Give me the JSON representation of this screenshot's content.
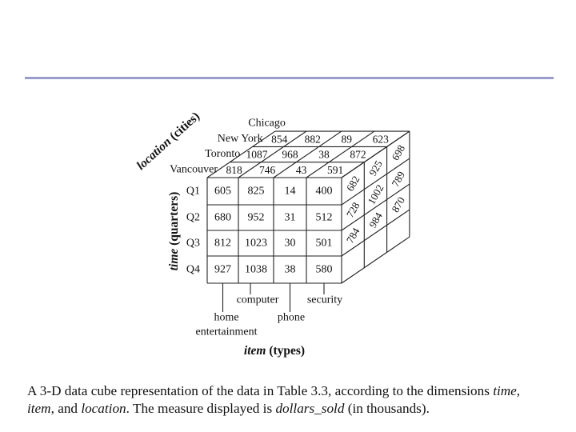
{
  "figure": {
    "location_axis": {
      "name": "location",
      "unit": "(cities)"
    },
    "time_axis": {
      "name": "time",
      "unit": "(quarters)"
    },
    "item_axis": {
      "name": "item",
      "unit": "(types)"
    },
    "locations": [
      "Chicago",
      "New York",
      "Toronto",
      "Vancouver"
    ],
    "quarters": [
      "Q1",
      "Q2",
      "Q3",
      "Q4"
    ],
    "items": [
      "home entertainment",
      "computer",
      "phone",
      "security"
    ],
    "item_label_lines": [
      [
        "home",
        "entertainment"
      ],
      [
        "computer"
      ],
      [
        "phone"
      ],
      [
        "security"
      ]
    ],
    "front_values": [
      [
        "605",
        "825",
        "14",
        "400"
      ],
      [
        "680",
        "952",
        "31",
        "512"
      ],
      [
        "812",
        "1023",
        "30",
        "501"
      ],
      [
        "927",
        "1038",
        "38",
        "580"
      ]
    ],
    "top_values": {
      "Chicago": [
        "854",
        "882",
        "89",
        "623"
      ],
      "New York": [
        "1087",
        "968",
        "38",
        "872"
      ],
      "Toronto": [
        "818",
        "746",
        "43",
        "591"
      ]
    },
    "side_values": [
      [
        "682",
        "925",
        "698"
      ],
      [
        "728",
        "1002",
        "789"
      ],
      [
        "784",
        "984",
        "870"
      ]
    ]
  },
  "caption": {
    "p1": "A 3-D data cube representation of the data in Table 3.3, according to the dimensions ",
    "time": "time",
    "p2": ",",
    "item": "item",
    "p3": ", and ",
    "location": "location",
    "p4": ". The measure displayed is ",
    "measure": "dollars_sold",
    "p5": " (in thousands)."
  }
}
